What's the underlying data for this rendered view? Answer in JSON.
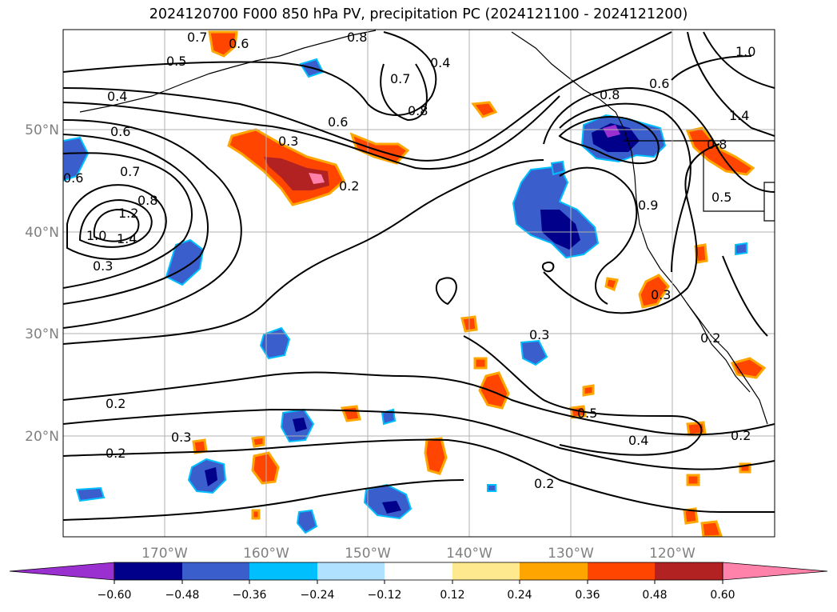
{
  "title": "2024120700 F000 850 hPa PV, precipitation PC (2024121100 - 2024121200)",
  "latitude_labels": [
    "50°N",
    "40°N",
    "30°N",
    "20°N"
  ],
  "longitude_labels": [
    "170°W",
    "160°W",
    "150°W",
    "140°W",
    "130°W",
    "120°W"
  ],
  "contour_labels": [
    "0.7",
    "0.6",
    "0.8",
    "0.5",
    "0.4",
    "0.7",
    "0.8",
    "0.6",
    "0.4",
    "0.6",
    "0.3",
    "0.2",
    "0.7",
    "0.6",
    "0.8",
    "1.2",
    "1.0",
    "1.4",
    "0.3",
    "1.0",
    "0.6",
    "0.8",
    "0.8",
    "1.4",
    "0.9",
    "0.5",
    "0.3",
    "0.3",
    "0.2",
    "0.2",
    "0.3",
    "0.2",
    "0.5",
    "0.4",
    "0.2",
    "0.2"
  ],
  "colorbar": {
    "ticks": [
      "−0.60",
      "−0.48",
      "−0.36",
      "−0.24",
      "−0.12",
      "0.12",
      "0.24",
      "0.36",
      "0.48",
      "0.60"
    ],
    "colors": [
      "#9b30d0",
      "#00008b",
      "#3a5fcd",
      "#00bfff",
      "#b0e2ff",
      "#ffffff",
      "#ffe98f",
      "#ffa500",
      "#ff4500",
      "#b22222",
      "#ff82ab"
    ]
  },
  "colors": {
    "strong_negative": "#00008b",
    "negative": "#3a5fcd",
    "weak_negative": "#00bfff",
    "weak_positive": "#ffa500",
    "positive": "#ff4500",
    "strong_positive": "#b22222",
    "extreme_positive": "#ff82ab",
    "extreme_negative": "#9b30d0",
    "gridline": "#b0b0b0",
    "contour": "#000000"
  }
}
